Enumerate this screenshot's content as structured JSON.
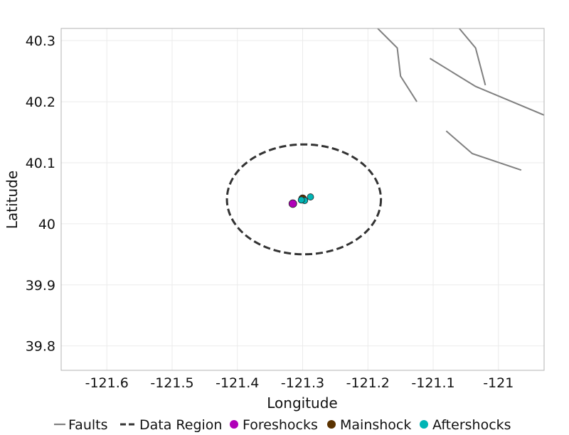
{
  "chart_data": {
    "type": "scatter",
    "title": "",
    "xlabel": "Longitude",
    "ylabel": "Latitude",
    "xlim": [
      -121.67,
      -120.93
    ],
    "ylim": [
      39.76,
      40.32
    ],
    "x_ticks": [
      -121.6,
      -121.5,
      -121.4,
      -121.3,
      -121.2,
      -121.1,
      -121.0
    ],
    "x_tick_labels": [
      "-121.6",
      "-121.5",
      "-121.4",
      "-121.3",
      "-121.2",
      "-121.1",
      "-121"
    ],
    "y_ticks": [
      39.8,
      39.9,
      40.0,
      40.1,
      40.2,
      40.3
    ],
    "y_tick_labels": [
      "39.8",
      "39.9",
      "40",
      "40.1",
      "40.2",
      "40.3"
    ],
    "grid": true,
    "legend_position": "bottom",
    "faults": [
      [
        [
          -121.185,
          40.32
        ],
        [
          -121.155,
          40.288
        ],
        [
          -121.15,
          40.242
        ],
        [
          -121.125,
          40.2
        ]
      ],
      [
        [
          -121.06,
          40.32
        ],
        [
          -121.035,
          40.288
        ],
        [
          -121.02,
          40.227
        ]
      ],
      [
        [
          -121.105,
          40.271
        ],
        [
          -121.035,
          40.225
        ],
        [
          -120.93,
          40.178
        ]
      ],
      [
        [
          -121.08,
          40.152
        ],
        [
          -121.04,
          40.115
        ],
        [
          -120.965,
          40.088
        ]
      ]
    ],
    "data_region": {
      "center": [
        -121.298,
        40.04
      ],
      "radius_lon": 0.118,
      "radius_lat": 0.09
    },
    "series": [
      {
        "name": "Foreshocks",
        "points": [
          [
            -121.315,
            40.033
          ]
        ]
      },
      {
        "name": "Mainshock",
        "points": [
          [
            -121.3,
            40.041
          ]
        ]
      },
      {
        "name": "Aftershocks",
        "points": [
          [
            -121.297,
            40.038
          ],
          [
            -121.288,
            40.044
          ],
          [
            -121.302,
            40.039
          ]
        ]
      }
    ],
    "legend": [
      {
        "label": "Faults",
        "kind": "line"
      },
      {
        "label": "Data Region",
        "kind": "dashed"
      },
      {
        "label": "Foreshocks",
        "kind": "point"
      },
      {
        "label": "Mainshock",
        "kind": "point"
      },
      {
        "label": "Aftershocks",
        "kind": "point"
      }
    ],
    "colors": {
      "faults": "#808080",
      "data_region": "#333333",
      "foreshocks": "#b000b8",
      "mainshock": "#5a3200",
      "aftershocks": "#00b5b5",
      "grid": "#ebebeb",
      "panel_border": "#b3b3b3"
    }
  }
}
